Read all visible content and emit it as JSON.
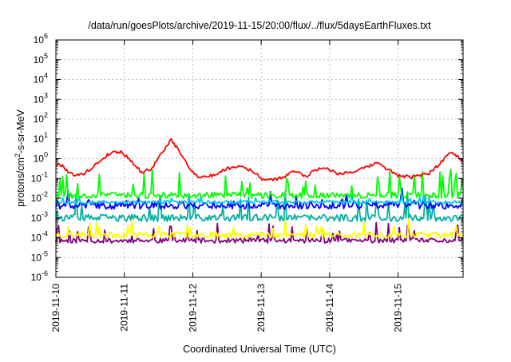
{
  "chart_data": {
    "type": "line",
    "title": "/data/run/goesPlots/archive/2019-11-15/20:00/flux/../flux/5daysEarthFluxes.txt",
    "xlabel": "Coordinated Universal Time (UTC)",
    "ylabel": {
      "pre": "protons/cm",
      "sup": "2",
      "post": "-s-sr-MeV"
    },
    "yscale": "log",
    "ylim_exp": [
      -6,
      6
    ],
    "y_tick_exps": [
      -6,
      -5,
      -4,
      -3,
      -2,
      -1,
      0,
      1,
      2,
      3,
      4,
      5,
      6
    ],
    "y_tick_base": "10",
    "xlim_days": [
      0,
      5.95
    ],
    "x_ticks": [
      {
        "label": "2019-11-10",
        "day": 0
      },
      {
        "label": "2019-11-11",
        "day": 1
      },
      {
        "label": "2019-11-12",
        "day": 2
      },
      {
        "label": "2019-11-13",
        "day": 3
      },
      {
        "label": "2019-11-14",
        "day": 4
      },
      {
        "label": "2019-11-15",
        "day": 5
      }
    ],
    "grid": true,
    "series": [
      {
        "color": "#800080",
        "base_log": -4.15,
        "noise": 0.12,
        "spikes": 0.55,
        "spike_rate": 0.09,
        "seed": 11,
        "key_logs": []
      },
      {
        "color": "#ffff00",
        "base_log": -3.85,
        "noise": 0.15,
        "spikes": 0.5,
        "spike_rate": 0.07,
        "seed": 23,
        "key_logs": []
      },
      {
        "color": "#00b0a0",
        "base_log": -3.0,
        "noise": 0.18,
        "spikes": 0.9,
        "spike_rate": 0.06,
        "seed": 37,
        "key_logs": []
      },
      {
        "color": "#0000ff",
        "base_log": -2.35,
        "noise": 0.2,
        "spikes": 0.5,
        "spike_rate": 0.07,
        "seed": 41,
        "key_logs": []
      },
      {
        "color": "#00c8ff",
        "base_log": -2.2,
        "noise": 0.08,
        "spikes": 0.2,
        "spike_rate": 0.05,
        "seed": 53,
        "key_logs": []
      },
      {
        "color": "#00ff00",
        "base_log": -1.85,
        "noise": 0.15,
        "spikes": 0.8,
        "spike_rate": 0.09,
        "seed": 67,
        "key_logs": []
      },
      {
        "color": "#ff0000",
        "base_log": null,
        "noise": 0.08,
        "spikes": 0.0,
        "spike_rate": 0.0,
        "seed": 79,
        "key_logs": [
          [
            0.0,
            -0.3
          ],
          [
            0.1,
            -0.35
          ],
          [
            0.2,
            -0.75
          ],
          [
            0.35,
            -0.85
          ],
          [
            0.5,
            -0.55
          ],
          [
            0.65,
            -0.1
          ],
          [
            0.8,
            0.3
          ],
          [
            0.95,
            0.35
          ],
          [
            1.1,
            -0.1
          ],
          [
            1.25,
            -0.7
          ],
          [
            1.4,
            -0.5
          ],
          [
            1.55,
            0.3
          ],
          [
            1.68,
            0.95
          ],
          [
            1.8,
            0.4
          ],
          [
            1.95,
            -0.5
          ],
          [
            2.1,
            -0.95
          ],
          [
            2.3,
            -0.85
          ],
          [
            2.5,
            -0.5
          ],
          [
            2.7,
            -0.35
          ],
          [
            2.85,
            -0.6
          ],
          [
            3.0,
            -1.0
          ],
          [
            3.15,
            -1.1
          ],
          [
            3.35,
            -0.9
          ],
          [
            3.5,
            -0.6
          ],
          [
            3.65,
            -0.9
          ],
          [
            3.8,
            -0.55
          ],
          [
            3.95,
            -0.45
          ],
          [
            4.1,
            -0.75
          ],
          [
            4.3,
            -0.7
          ],
          [
            4.5,
            -0.5
          ],
          [
            4.7,
            -0.2
          ],
          [
            4.85,
            -0.55
          ],
          [
            5.0,
            -0.85
          ],
          [
            5.2,
            -0.95
          ],
          [
            5.45,
            -0.75
          ],
          [
            5.6,
            -0.3
          ],
          [
            5.75,
            0.35
          ],
          [
            5.85,
            0.15
          ],
          [
            5.95,
            -0.1
          ]
        ]
      }
    ]
  }
}
